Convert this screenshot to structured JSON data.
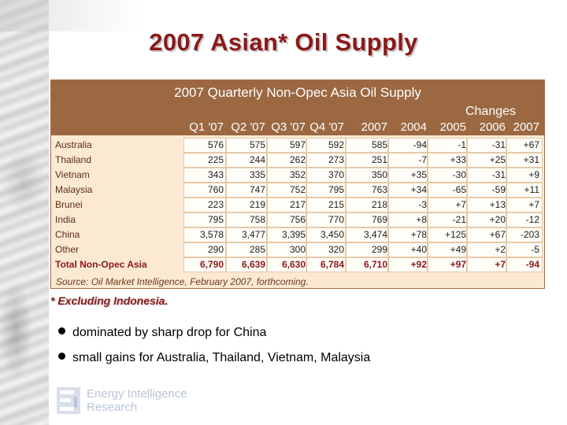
{
  "slide": {
    "title": "2007 Asian* Oil Supply",
    "footnote": "* Excluding Indonesia.",
    "bullets": [
      "dominated by sharp drop for China",
      "small gains for Australia, Thailand, Vietnam, Malaysia"
    ],
    "logo": {
      "line1": "Energy Intelligence",
      "line2": "Research",
      "icon": "energy-intelligence-logo-icon"
    }
  },
  "table": {
    "title": "2007 Quarterly Non-Opec Asia Oil Supply",
    "changes_label": "Changes",
    "columns": [
      "Q1 '07",
      "Q2 '07",
      "Q3 '07",
      "Q4 '07",
      "2007",
      "2004",
      "2005",
      "2006",
      "2007"
    ],
    "rows": [
      {
        "label": "Australia",
        "values": [
          "576",
          "575",
          "597",
          "592",
          "585",
          "-94",
          "-1",
          "-31",
          "+67"
        ]
      },
      {
        "label": "Thailand",
        "values": [
          "225",
          "244",
          "262",
          "273",
          "251",
          "-7",
          "+33",
          "+25",
          "+31"
        ]
      },
      {
        "label": "Vietnam",
        "values": [
          "343",
          "335",
          "352",
          "370",
          "350",
          "+35",
          "-30",
          "-31",
          "+9"
        ]
      },
      {
        "label": "Malaysia",
        "values": [
          "760",
          "747",
          "752",
          "795",
          "763",
          "+34",
          "-65",
          "-59",
          "+11"
        ]
      },
      {
        "label": "Brunei",
        "values": [
          "223",
          "219",
          "217",
          "215",
          "218",
          "-3",
          "+7",
          "+13",
          "+7"
        ]
      },
      {
        "label": "India",
        "values": [
          "795",
          "758",
          "756",
          "770",
          "769",
          "+8",
          "-21",
          "+20",
          "-12"
        ]
      },
      {
        "label": "China",
        "values": [
          "3,578",
          "3,477",
          "3,395",
          "3,450",
          "3,474",
          "+78",
          "+125",
          "+67",
          "-203"
        ]
      },
      {
        "label": "Other",
        "values": [
          "290",
          "285",
          "300",
          "320",
          "299",
          "+40",
          "+49",
          "+2",
          "-5"
        ]
      }
    ],
    "total": {
      "label": "Total Non-Opec Asia",
      "values": [
        "6,790",
        "6,639",
        "6,630",
        "6,784",
        "6,710",
        "+92",
        "+97",
        "+7",
        "-94"
      ]
    },
    "source": "Source: Oil Market Intelligence, February 2007, forthcoming."
  },
  "colors": {
    "title": "#8a1a1a",
    "table_header_bg": "#9b6842",
    "table_body_bg": "#fbe9d3"
  }
}
